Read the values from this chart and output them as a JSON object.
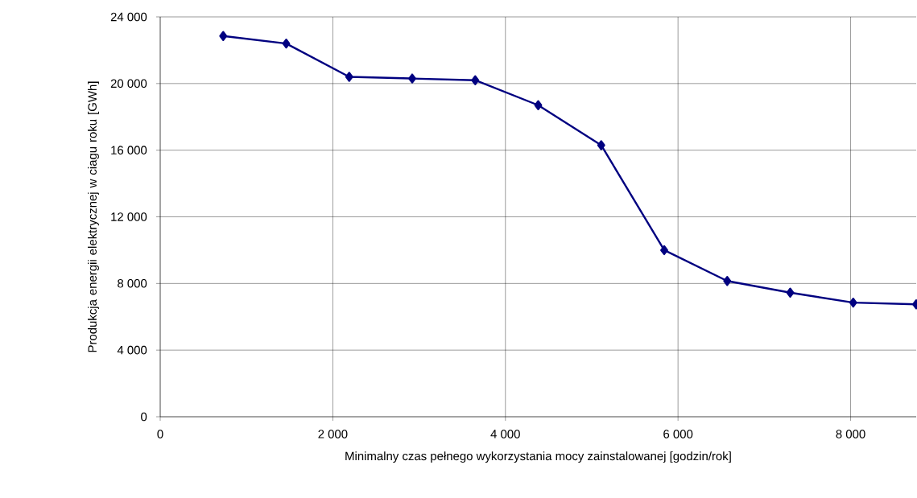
{
  "chart_data": {
    "type": "line",
    "xlabel": "Minimalny czas pełnego wykorzystania mocy zainstalowanej [godzin/rok]",
    "ylabel": "Produkcja energii elektrycznej w ciagu roku [GWh]",
    "x": [
      730,
      1460,
      2190,
      2920,
      3650,
      4380,
      5110,
      5840,
      6570,
      7300,
      8030,
      8760
    ],
    "series": [
      {
        "color": "#000080",
        "values": [
          22850,
          22400,
          20400,
          20300,
          20200,
          18700,
          16300,
          10000,
          8150,
          7450,
          6850,
          6750
        ]
      }
    ],
    "xlim": [
      0,
      8760
    ],
    "xticks": [
      0,
      {
        "value": 2000,
        "label": "2 000"
      },
      {
        "value": 4000,
        "label": "4 000"
      },
      {
        "value": 6000,
        "label": "6 000"
      },
      {
        "value": 8000,
        "label": "8 000"
      }
    ],
    "ylim": [
      0,
      24000
    ],
    "yticks": [
      0,
      {
        "value": 4000,
        "label": "4 000"
      },
      {
        "value": 8000,
        "label": "8 000"
      },
      {
        "value": 12000,
        "label": "12 000"
      },
      {
        "value": 16000,
        "label": "16 000"
      },
      {
        "value": 20000,
        "label": "20 000"
      },
      {
        "value": 24000,
        "label": "24 000"
      }
    ],
    "grid": true,
    "marker": "diamond",
    "line_style": "solid"
  }
}
